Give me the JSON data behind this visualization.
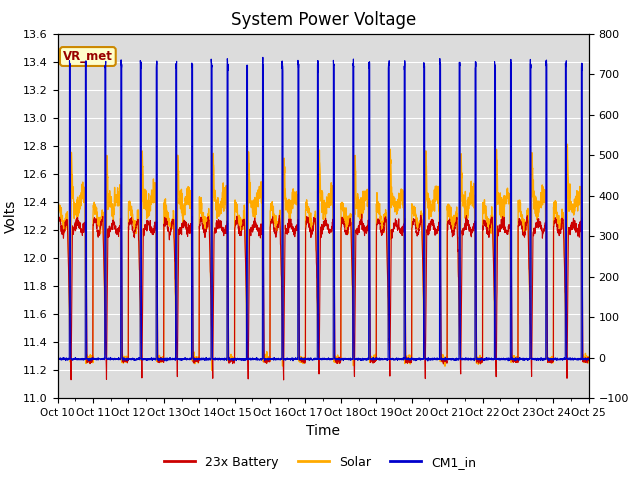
{
  "title": "System Power Voltage",
  "xlabel": "Time",
  "ylabel": "Volts",
  "ylim_left": [
    11.0,
    13.6
  ],
  "ylim_right": [
    -100,
    800
  ],
  "n_days": 15,
  "battery_color": "#cc0000",
  "solar_color": "#ffaa00",
  "cm1_color": "#0000cc",
  "battery_label": "23x Battery",
  "solar_label": "Solar",
  "cm1_label": "CM1_in",
  "vr_label": "VR_met",
  "background_color": "#dcdcdc",
  "title_fontsize": 12,
  "axis_label_fontsize": 10,
  "xtick_labels": [
    "Oct 10",
    "Oct 11",
    "Oct 12",
    "Oct 13",
    "Oct 14",
    "Oct 15",
    "Oct 16",
    "Oct 17",
    "Oct 18",
    "Oct 19",
    "Oct 20",
    "Oct 21",
    "Oct 22",
    "Oct 23",
    "Oct 24",
    "Oct 25"
  ]
}
